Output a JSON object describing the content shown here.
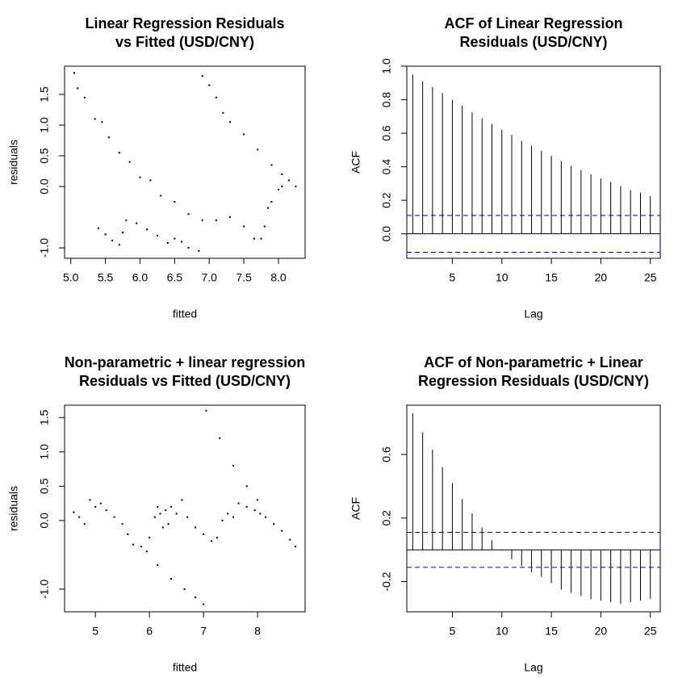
{
  "chart_data": [
    {
      "type": "scatter",
      "title": [
        "Linear Regression Residuals",
        "vs Fitted (USD/CNY)"
      ],
      "x_label": "fitted",
      "y_label": "residuals",
      "color": "#000000",
      "x": [
        5.05,
        5.1,
        5.2,
        5.35,
        5.45,
        5.55,
        5.7,
        5.85,
        6.0,
        6.15,
        6.3,
        6.5,
        6.7,
        6.9,
        7.1,
        7.3,
        7.5,
        7.65,
        7.75,
        7.8,
        7.85,
        7.9,
        8.0,
        8.05,
        6.9,
        7.0,
        7.1,
        7.2,
        7.3,
        7.5,
        7.7,
        7.9,
        8.05,
        8.15,
        8.25,
        5.4,
        5.5,
        5.6,
        5.7,
        5.75,
        5.8,
        5.95,
        6.1,
        6.25,
        6.4,
        6.5,
        6.6,
        6.7,
        6.85
      ],
      "values": [
        1.85,
        1.6,
        1.45,
        1.1,
        1.05,
        0.8,
        0.55,
        0.4,
        0.15,
        0.1,
        -0.15,
        -0.25,
        -0.45,
        -0.55,
        -0.55,
        -0.5,
        -0.65,
        -0.85,
        -0.85,
        -0.65,
        -0.35,
        -0.25,
        -0.05,
        0.0,
        1.8,
        1.65,
        1.45,
        1.2,
        1.05,
        0.85,
        0.6,
        0.35,
        0.2,
        0.1,
        0.0,
        -0.68,
        -0.78,
        -0.88,
        -0.95,
        -0.75,
        -0.55,
        -0.6,
        -0.7,
        -0.8,
        -0.92,
        -0.85,
        -0.9,
        -1.0,
        -1.05
      ],
      "xlim": [
        4.91,
        8.385
      ],
      "ylim": [
        -1.17,
        1.96
      ],
      "xticks": [
        {
          "value": 5,
          "label": "5.0"
        },
        5.5,
        {
          "value": 6,
          "label": "6.0"
        },
        6.5,
        {
          "value": 7,
          "label": "7.0"
        },
        7.5,
        {
          "value": 8,
          "label": "8.0"
        }
      ],
      "yticks": [
        {
          "value": -1,
          "label": "-1.0"
        },
        {
          "value": 0,
          "label": "0.0"
        },
        0.5,
        {
          "value": 1,
          "label": "1.0"
        },
        1.5
      ]
    },
    {
      "type": "bar",
      "title": [
        "ACF of Linear Regression",
        "Residuals (USD/CNY)"
      ],
      "x_label": "Lag",
      "y_label": "ACF",
      "color": "#000000",
      "ci_color": "#0000cc",
      "x": [
        1,
        2,
        3,
        4,
        5,
        6,
        7,
        8,
        9,
        10,
        11,
        12,
        13,
        14,
        15,
        16,
        17,
        18,
        19,
        20,
        21,
        22,
        23,
        24,
        25
      ],
      "values": [
        0.95,
        0.91,
        0.875,
        0.84,
        0.8,
        0.765,
        0.725,
        0.69,
        0.655,
        0.62,
        0.59,
        0.555,
        0.525,
        0.495,
        0.465,
        0.435,
        0.405,
        0.38,
        0.355,
        0.33,
        0.31,
        0.285,
        0.26,
        0.245,
        0.225
      ],
      "ci": [
        0.11,
        -0.11
      ],
      "xlim": [
        0.4,
        26
      ],
      "ylim": [
        -0.146,
        1.0
      ],
      "xticks": [
        5,
        10,
        15,
        20,
        25
      ],
      "yticks": [
        {
          "value": 0,
          "label": "0.0"
        },
        0.2,
        0.4,
        0.6,
        0.8,
        {
          "value": 1,
          "label": "1.0"
        }
      ]
    },
    {
      "type": "scatter",
      "title": [
        "Non-parametric + linear regression",
        "Residuals vs Fitted (USD/CNY)"
      ],
      "x_label": "fitted",
      "y_label": "residuals",
      "color": "#000000",
      "x": [
        4.6,
        4.7,
        4.8,
        4.9,
        5.0,
        5.1,
        5.2,
        5.35,
        5.5,
        5.6,
        5.7,
        5.85,
        6.0,
        6.1,
        6.15,
        6.2,
        6.25,
        6.3,
        6.35,
        6.4,
        6.5,
        6.6,
        6.7,
        6.85,
        7.0,
        7.15,
        7.25,
        7.35,
        7.45,
        7.55,
        7.65,
        7.8,
        7.95,
        8.05,
        8.15,
        8.3,
        8.45,
        8.6,
        8.7,
        7.05,
        7.3,
        7.55,
        7.8,
        8.0,
        5.95,
        6.15,
        6.4,
        6.65,
        6.85,
        7.0
      ],
      "values": [
        0.12,
        0.05,
        -0.05,
        0.3,
        0.2,
        0.25,
        0.15,
        0.05,
        -0.05,
        -0.2,
        -0.35,
        -0.38,
        -0.25,
        0.05,
        0.2,
        0.1,
        -0.1,
        0.15,
        -0.05,
        0.2,
        0.1,
        0.3,
        0.05,
        -0.1,
        -0.2,
        -0.3,
        -0.25,
        0.0,
        0.1,
        0.05,
        0.25,
        0.2,
        0.15,
        0.1,
        0.05,
        -0.05,
        -0.15,
        -0.28,
        -0.38,
        1.6,
        1.2,
        0.8,
        0.5,
        0.3,
        -0.45,
        -0.65,
        -0.85,
        -1.0,
        -1.12,
        -1.22
      ],
      "xlim": [
        4.43,
        8.88
      ],
      "ylim": [
        -1.33,
        1.68
      ],
      "xticks": [
        5,
        6,
        7,
        8
      ],
      "yticks": [
        {
          "value": -1,
          "label": "-1.0"
        },
        {
          "value": 0,
          "label": "0.0"
        },
        0.5,
        {
          "value": 1,
          "label": "1.0"
        },
        1.5
      ]
    },
    {
      "type": "bar",
      "title": [
        "ACF of Non-parametric + Linear",
        "Regression Residuals (USD/CNY)"
      ],
      "x_label": "Lag",
      "y_label": "ACF",
      "color": "#000000",
      "ci_color": "#0000cc",
      "x": [
        1,
        2,
        3,
        4,
        5,
        6,
        7,
        8,
        9,
        10,
        11,
        12,
        13,
        14,
        15,
        16,
        17,
        18,
        19,
        20,
        21,
        22,
        23,
        24,
        25
      ],
      "values": [
        0.86,
        0.74,
        0.63,
        0.52,
        0.42,
        0.32,
        0.23,
        0.14,
        0.06,
        -0.005,
        -0.06,
        -0.1,
        -0.14,
        -0.17,
        -0.21,
        -0.25,
        -0.27,
        -0.29,
        -0.31,
        -0.32,
        -0.33,
        -0.34,
        -0.33,
        -0.32,
        -0.31
      ],
      "ci": [
        0.11,
        -0.11
      ],
      "xlim": [
        0.4,
        26
      ],
      "ylim": [
        -0.39,
        0.91
      ],
      "xticks": [
        5,
        10,
        15,
        20,
        25
      ],
      "yticks": [
        -0.2,
        0.2,
        0.6
      ]
    }
  ]
}
